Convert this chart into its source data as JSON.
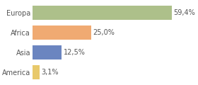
{
  "categories": [
    "America",
    "Asia",
    "Africa",
    "Europa"
  ],
  "values": [
    3.1,
    12.5,
    25.0,
    59.4
  ],
  "labels": [
    "3,1%",
    "12,5%",
    "25,0%",
    "59,4%"
  ],
  "bar_colors": [
    "#e8c96b",
    "#6b85c0",
    "#f0aa72",
    "#adc08a"
  ],
  "xlim": [
    0,
    68
  ],
  "background_color": "#ffffff",
  "bar_height": 0.72,
  "label_fontsize": 7,
  "tick_fontsize": 7,
  "grid_color": "#dddddd",
  "text_color": "#555555"
}
